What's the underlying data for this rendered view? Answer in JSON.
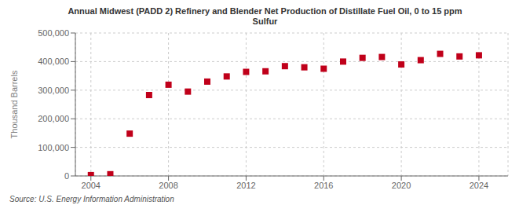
{
  "chart_data": {
    "type": "scatter",
    "title": "Annual Midwest (PADD 2) Refinery and Blender Net Production of Distillate Fuel Oil, 0 to 15 ppm\nSulfur",
    "ylabel": "Thousand Barrels",
    "annotations": [
      "Source: U.S. Energy Information Administration"
    ],
    "x": [
      2004,
      2005,
      2006,
      2007,
      2008,
      2009,
      2010,
      2011,
      2012,
      2013,
      2014,
      2015,
      2016,
      2017,
      2018,
      2019,
      2020,
      2021,
      2022,
      2023,
      2024
    ],
    "values": [
      3000,
      6000,
      148000,
      283000,
      319000,
      295000,
      330000,
      348000,
      364000,
      366000,
      384000,
      380000,
      375000,
      400000,
      413000,
      416000,
      390000,
      405000,
      427000,
      418000,
      422000
    ],
    "color": "#c0001a",
    "marker": "square",
    "xlim": [
      2003.2,
      2025.5
    ],
    "xticks": [
      2004,
      2008,
      2012,
      2016,
      2020,
      2024
    ],
    "ylim": [
      0,
      500000
    ],
    "yticks": [
      0,
      {
        "value": 100000,
        "label": "100,000"
      },
      {
        "value": 200000,
        "label": "200,000"
      },
      {
        "value": 300000,
        "label": "300,000"
      },
      {
        "value": 400000,
        "label": "400,000"
      },
      {
        "value": 500000,
        "label": "500,000"
      }
    ],
    "grid": true
  }
}
